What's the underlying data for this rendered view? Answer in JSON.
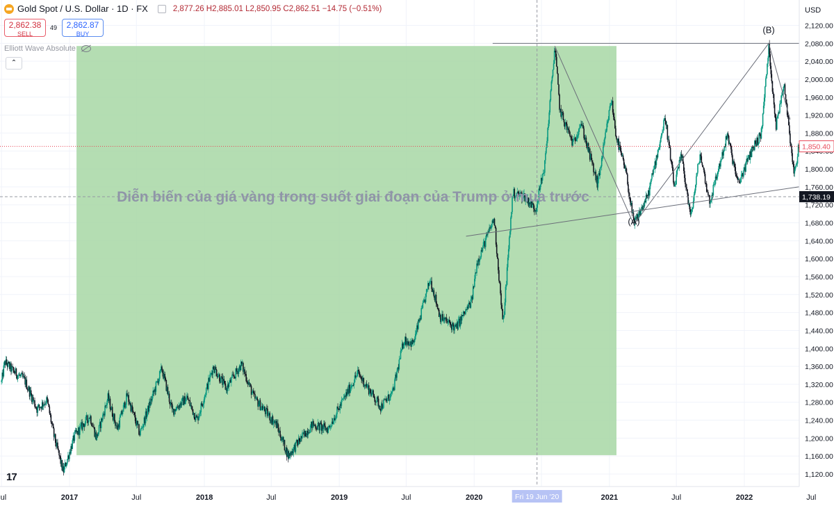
{
  "header": {
    "symbol": "Gold Spot / U.S. Dollar · 1D · FX",
    "ohlc": "2,877.26  H2,885.01  L2,850.95  C2,862.51  −14.75 (−0.51%)"
  },
  "trade": {
    "sell_price": "2,862.38",
    "sell_label": "SELL",
    "spread": "49",
    "buy_price": "2,862.87",
    "buy_label": "BUY"
  },
  "indicator": {
    "name": "Elliott Wave Absolute",
    "collapse_icon": "⌃"
  },
  "logo": "17",
  "colors": {
    "up": "#089981",
    "down": "#131722",
    "box": "#a7d7a4",
    "current_price": "#e84a5a",
    "crosshair": "#131722"
  },
  "chart_data": {
    "type": "candlestick",
    "currency": "USD",
    "y_range": [
      1100,
      2140
    ],
    "y_ticks": [
      "2,120.00",
      "2,080.00",
      "2,040.00",
      "2,000.00",
      "1,960.00",
      "1,920.00",
      "1,880.00",
      "1,840.00",
      "1,800.00",
      "1,760.00",
      "1,720.00",
      "1,680.00",
      "1,640.00",
      "1,600.00",
      "1,560.00",
      "1,520.00",
      "1,480.00",
      "1,440.00",
      "1,400.00",
      "1,360.00",
      "1,320.00",
      "1,280.00",
      "1,240.00",
      "1,200.00",
      "1,160.00",
      "1,120.00"
    ],
    "x_labels": [
      {
        "date": "2016-07-01",
        "label": "Jul"
      },
      {
        "date": "2017-01-01",
        "label": "2017"
      },
      {
        "date": "2017-07-01",
        "label": "Jul"
      },
      {
        "date": "2018-01-01",
        "label": "2018"
      },
      {
        "date": "2018-07-01",
        "label": "Jul"
      },
      {
        "date": "2019-01-01",
        "label": "2019"
      },
      {
        "date": "2019-07-01",
        "label": "Jul"
      },
      {
        "date": "2020-01-01",
        "label": "2020"
      },
      {
        "date": "2020-07-01",
        "label": "Jul"
      },
      {
        "date": "2021-01-01",
        "label": "2021"
      },
      {
        "date": "2021-07-01",
        "label": "Jul"
      },
      {
        "date": "2022-01-01",
        "label": "2022"
      },
      {
        "date": "2022-07-01",
        "label": "Jul"
      }
    ],
    "crosshair_date_label": "Fri 19 Jun '20",
    "current_price": 1850.4,
    "current_price_label": "1,850.40",
    "crosshair_price": 1738.19,
    "crosshair_price_label": "1,738.19",
    "annotation": "Diễn biến của giá vàng trong suốt giai đoạn của Trump ở mùa trước",
    "shaded_period": {
      "start": "2017-01-20",
      "end": "2021-01-20",
      "low": 1162,
      "high": 2074
    },
    "wave_labels": [
      {
        "label": "(A)",
        "date": "2021-03-08",
        "price": 1676
      },
      {
        "label": "(B)",
        "date": "2022-03-08",
        "price": 2103
      }
    ],
    "trendlines": [
      {
        "from": {
          "date": "2020-08-06",
          "price": 2074
        },
        "to": {
          "date": "2021-03-08",
          "price": 1676
        }
      },
      {
        "from": {
          "date": "2021-03-08",
          "price": 1676
        },
        "to": {
          "date": "2022-03-08",
          "price": 2080
        }
      },
      {
        "from": {
          "date": "2022-03-08",
          "price": 2080
        },
        "to": {
          "date": "2022-05-05",
          "price": 1910
        }
      },
      {
        "from": {
          "date": "2020-02-20",
          "price": 2080
        },
        "to": {
          "date": "2022-06-30",
          "price": 2080
        }
      },
      {
        "from": {
          "date": "2019-12-10",
          "price": 1650
        },
        "to": {
          "date": "2022-06-30",
          "price": 1764
        }
      }
    ],
    "price_path": [
      [
        "2016-07-01",
        1325
      ],
      [
        "2016-07-10",
        1370
      ],
      [
        "2016-08-01",
        1350
      ],
      [
        "2016-09-01",
        1330
      ],
      [
        "2016-10-05",
        1265
      ],
      [
        "2016-11-01",
        1285
      ],
      [
        "2016-11-20",
        1205
      ],
      [
        "2016-12-15",
        1125
      ],
      [
        "2017-01-15",
        1205
      ],
      [
        "2017-02-25",
        1250
      ],
      [
        "2017-03-15",
        1200
      ],
      [
        "2017-04-15",
        1290
      ],
      [
        "2017-05-10",
        1220
      ],
      [
        "2017-06-06",
        1295
      ],
      [
        "2017-07-10",
        1210
      ],
      [
        "2017-09-08",
        1355
      ],
      [
        "2017-10-06",
        1260
      ],
      [
        "2017-11-15",
        1290
      ],
      [
        "2017-12-12",
        1240
      ],
      [
        "2018-01-25",
        1360
      ],
      [
        "2018-03-01",
        1310
      ],
      [
        "2018-04-11",
        1365
      ],
      [
        "2018-05-15",
        1290
      ],
      [
        "2018-07-15",
        1230
      ],
      [
        "2018-08-16",
        1160
      ],
      [
        "2018-09-15",
        1195
      ],
      [
        "2018-10-20",
        1230
      ],
      [
        "2018-12-01",
        1220
      ],
      [
        "2019-01-15",
        1290
      ],
      [
        "2019-02-20",
        1345
      ],
      [
        "2019-04-23",
        1270
      ],
      [
        "2019-05-25",
        1300
      ],
      [
        "2019-06-25",
        1420
      ],
      [
        "2019-07-20",
        1410
      ],
      [
        "2019-09-04",
        1555
      ],
      [
        "2019-10-01",
        1470
      ],
      [
        "2019-11-12",
        1445
      ],
      [
        "2019-12-25",
        1505
      ],
      [
        "2020-01-08",
        1590
      ],
      [
        "2020-02-24",
        1690
      ],
      [
        "2020-03-19",
        1450
      ],
      [
        "2020-04-14",
        1745
      ],
      [
        "2020-05-15",
        1740
      ],
      [
        "2020-06-15",
        1710
      ],
      [
        "2020-07-10",
        1810
      ],
      [
        "2020-08-06",
        2074
      ],
      [
        "2020-08-20",
        1930
      ],
      [
        "2020-09-25",
        1855
      ],
      [
        "2020-10-15",
        1905
      ],
      [
        "2020-11-30",
        1765
      ],
      [
        "2021-01-06",
        1955
      ],
      [
        "2021-01-20",
        1870
      ],
      [
        "2021-02-15",
        1790
      ],
      [
        "2021-03-08",
        1676
      ],
      [
        "2021-04-15",
        1740
      ],
      [
        "2021-06-01",
        1915
      ],
      [
        "2021-06-25",
        1760
      ],
      [
        "2021-07-15",
        1830
      ],
      [
        "2021-08-09",
        1690
      ],
      [
        "2021-09-03",
        1835
      ],
      [
        "2021-09-29",
        1725
      ],
      [
        "2021-11-16",
        1875
      ],
      [
        "2021-12-15",
        1765
      ],
      [
        "2022-01-25",
        1850
      ],
      [
        "2022-02-15",
        1875
      ],
      [
        "2022-03-08",
        2070
      ],
      [
        "2022-03-28",
        1895
      ],
      [
        "2022-04-18",
        1995
      ],
      [
        "2022-05-16",
        1785
      ],
      [
        "2022-06-01",
        1870
      ],
      [
        "2022-06-10",
        1850
      ]
    ]
  }
}
